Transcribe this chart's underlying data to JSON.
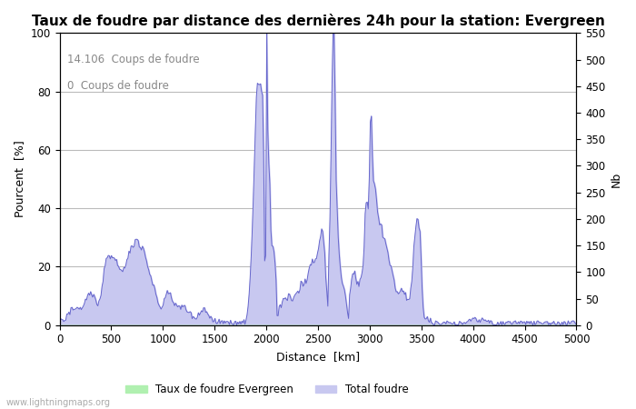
{
  "title": "Taux de foudre par distance des dernières 24h pour la station: Evergreen",
  "xlabel": "Distance  [km]",
  "ylabel_left": "Pourcent  [%]",
  "ylabel_right": "Nb",
  "annotation_line1": "14.106  Coups de foudre",
  "annotation_line2": "0  Coups de foudre",
  "legend_label1": "Taux de foudre Evergreen",
  "legend_label2": "Total foudre",
  "watermark": "www.lightningmaps.org",
  "xlim": [
    0,
    5000
  ],
  "ylim_left": [
    0,
    100
  ],
  "ylim_right": [
    0,
    550
  ],
  "xticks": [
    0,
    500,
    1000,
    1500,
    2000,
    2500,
    3000,
    3500,
    4000,
    4500,
    5000
  ],
  "yticks_left": [
    0,
    20,
    40,
    60,
    80,
    100
  ],
  "yticks_right": [
    0,
    50,
    100,
    150,
    200,
    250,
    300,
    350,
    400,
    450,
    500,
    550
  ],
  "fill_color_total": "#c8c8f0",
  "fill_color_rate": "#b0f0b0",
  "line_color": "#6666cc",
  "background_color": "#ffffff",
  "grid_color": "#bbbbbb",
  "title_fontsize": 11,
  "label_fontsize": 9,
  "tick_fontsize": 8.5
}
